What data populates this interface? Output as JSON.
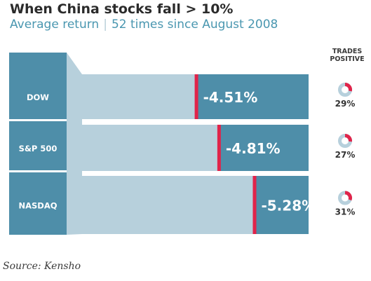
{
  "chart_data": {
    "type": "bar",
    "title": "When China stocks fall > 10%",
    "subtitle_main": "Average return",
    "subtitle_separator": "|",
    "subtitle_detail": "52 times since August 2008",
    "categories": [
      "DOW",
      "S&P 500",
      "NASDAQ"
    ],
    "series": [
      {
        "values": [
          -4.51,
          -4.81,
          -5.28
        ],
        "labels": [
          "-4.51%",
          "-4.81%",
          "-5.28%"
        ]
      }
    ],
    "trades_positive": {
      "header_line1": "TRADES",
      "header_line2": "POSITIVE",
      "values": [
        29,
        27,
        31
      ],
      "labels": [
        "29%",
        "27%",
        "31%"
      ]
    },
    "colors": {
      "label_box": "#4e8ea9",
      "bar_fill": "#4e8ea9",
      "bar_track": "#b7d0dc",
      "marker": "#e0244a",
      "donut_track": "#b7d0dc",
      "donut_fill": "#e0244a",
      "title": "#2b2b2b",
      "subtitle": "#4a97b0"
    }
  },
  "source": "Source: Kensho"
}
